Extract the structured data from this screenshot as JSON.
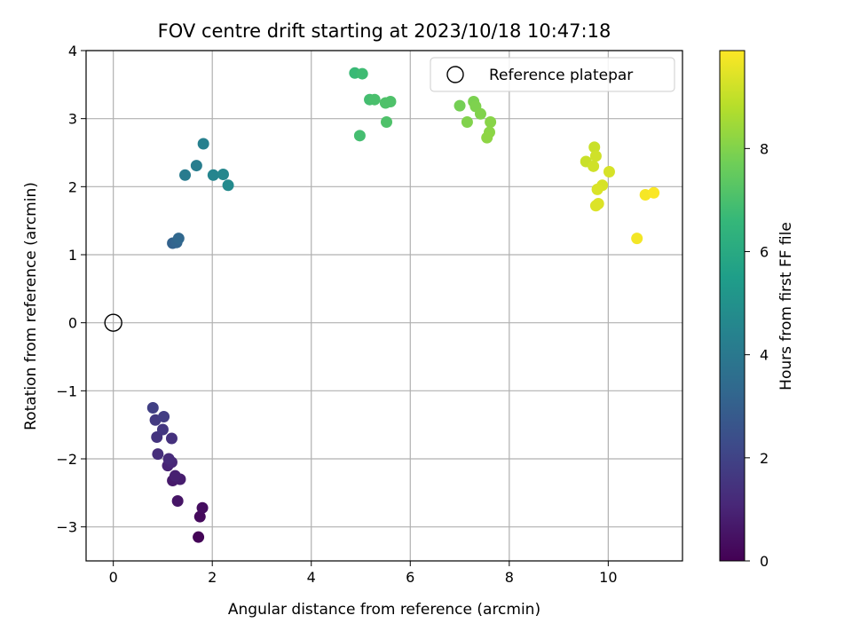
{
  "chart_data": {
    "type": "scatter",
    "title": "FOV centre drift starting at 2023/10/18 10:47:18",
    "xlabel": "Angular distance from reference (arcmin)",
    "ylabel": "Rotation from reference (arcmin)",
    "xlim": [
      -0.55,
      11.5
    ],
    "ylim": [
      -3.5,
      4.0
    ],
    "xticks": [
      0,
      2,
      4,
      6,
      8,
      10
    ],
    "yticks": [
      -3,
      -2,
      -1,
      0,
      1,
      2,
      3,
      4
    ],
    "xtick_labels": [
      "0",
      "2",
      "4",
      "6",
      "8",
      "10"
    ],
    "ytick_labels": [
      "−3",
      "−2",
      "−1",
      "0",
      "1",
      "2",
      "3",
      "4"
    ],
    "grid": true,
    "colormap": "viridis",
    "colorbar": {
      "label": "Hours from first FF file",
      "range": [
        0,
        9.9
      ],
      "ticks": [
        0,
        2,
        4,
        6,
        8
      ],
      "tick_labels": [
        "0",
        "2",
        "4",
        "6",
        "8"
      ]
    },
    "legend": {
      "location": "top-right",
      "entries": [
        {
          "label": "Reference platepar",
          "marker": "open-circle"
        }
      ]
    },
    "reference_point": {
      "x": 0,
      "y": 0
    },
    "points": [
      {
        "x": 1.72,
        "y": -3.15,
        "h": 0.1
      },
      {
        "x": 1.75,
        "y": -2.85,
        "h": 0.25
      },
      {
        "x": 1.8,
        "y": -2.72,
        "h": 0.35
      },
      {
        "x": 1.3,
        "y": -2.62,
        "h": 0.55
      },
      {
        "x": 1.2,
        "y": -2.32,
        "h": 0.7
      },
      {
        "x": 1.35,
        "y": -2.3,
        "h": 0.8
      },
      {
        "x": 1.25,
        "y": -2.25,
        "h": 0.9
      },
      {
        "x": 1.1,
        "y": -2.1,
        "h": 1.0
      },
      {
        "x": 1.18,
        "y": -2.05,
        "h": 1.1
      },
      {
        "x": 1.12,
        "y": -2.0,
        "h": 1.2
      },
      {
        "x": 0.9,
        "y": -1.93,
        "h": 1.3
      },
      {
        "x": 1.18,
        "y": -1.7,
        "h": 1.4
      },
      {
        "x": 0.88,
        "y": -1.68,
        "h": 1.5
      },
      {
        "x": 1.0,
        "y": -1.57,
        "h": 1.6
      },
      {
        "x": 0.85,
        "y": -1.43,
        "h": 1.7
      },
      {
        "x": 1.02,
        "y": -1.38,
        "h": 1.8
      },
      {
        "x": 0.8,
        "y": -1.25,
        "h": 1.9
      },
      {
        "x": 1.2,
        "y": 1.17,
        "h": 3.1
      },
      {
        "x": 1.28,
        "y": 1.18,
        "h": 3.2
      },
      {
        "x": 1.32,
        "y": 1.24,
        "h": 3.3
      },
      {
        "x": 1.45,
        "y": 2.17,
        "h": 4.1
      },
      {
        "x": 1.68,
        "y": 2.31,
        "h": 4.2
      },
      {
        "x": 1.82,
        "y": 2.63,
        "h": 4.3
      },
      {
        "x": 2.02,
        "y": 2.17,
        "h": 4.5
      },
      {
        "x": 2.22,
        "y": 2.18,
        "h": 4.6
      },
      {
        "x": 2.32,
        "y": 2.02,
        "h": 4.7
      },
      {
        "x": 4.88,
        "y": 3.67,
        "h": 6.7
      },
      {
        "x": 5.03,
        "y": 3.66,
        "h": 6.8
      },
      {
        "x": 5.18,
        "y": 3.28,
        "h": 6.9
      },
      {
        "x": 5.28,
        "y": 3.28,
        "h": 7.0
      },
      {
        "x": 5.5,
        "y": 3.23,
        "h": 7.1
      },
      {
        "x": 5.6,
        "y": 3.25,
        "h": 7.1
      },
      {
        "x": 4.98,
        "y": 2.75,
        "h": 6.9
      },
      {
        "x": 5.52,
        "y": 2.95,
        "h": 7.1
      },
      {
        "x": 7.0,
        "y": 3.19,
        "h": 7.8
      },
      {
        "x": 7.28,
        "y": 3.25,
        "h": 7.9
      },
      {
        "x": 7.32,
        "y": 3.18,
        "h": 7.95
      },
      {
        "x": 7.42,
        "y": 3.07,
        "h": 8.0
      },
      {
        "x": 7.15,
        "y": 2.95,
        "h": 8.0
      },
      {
        "x": 7.62,
        "y": 2.95,
        "h": 8.1
      },
      {
        "x": 7.6,
        "y": 2.8,
        "h": 8.15
      },
      {
        "x": 7.55,
        "y": 2.72,
        "h": 8.2
      },
      {
        "x": 9.72,
        "y": 2.58,
        "h": 9.1
      },
      {
        "x": 9.75,
        "y": 2.45,
        "h": 9.2
      },
      {
        "x": 9.55,
        "y": 2.37,
        "h": 9.1
      },
      {
        "x": 9.7,
        "y": 2.3,
        "h": 9.2
      },
      {
        "x": 10.02,
        "y": 2.22,
        "h": 9.3
      },
      {
        "x": 9.88,
        "y": 2.02,
        "h": 9.3
      },
      {
        "x": 9.78,
        "y": 1.96,
        "h": 9.35
      },
      {
        "x": 9.8,
        "y": 1.75,
        "h": 9.4
      },
      {
        "x": 9.75,
        "y": 1.72,
        "h": 9.4
      },
      {
        "x": 10.75,
        "y": 1.88,
        "h": 9.8
      },
      {
        "x": 10.92,
        "y": 1.91,
        "h": 9.85
      },
      {
        "x": 10.58,
        "y": 1.24,
        "h": 9.75
      }
    ]
  }
}
